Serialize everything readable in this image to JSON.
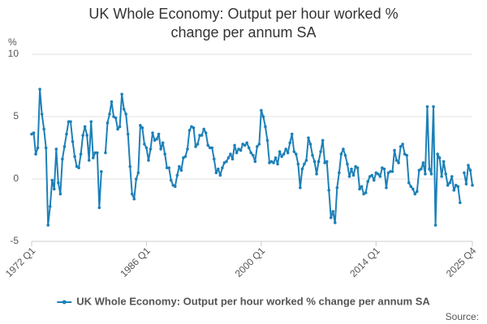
{
  "chart_data": {
    "type": "line",
    "title": "UK Whole Economy: Output per hour worked % change per annum SA",
    "y_label": "%",
    "source": "Source:",
    "categories": [
      "1972 Q1",
      null,
      null,
      null,
      null,
      null,
      null,
      null,
      null,
      null,
      null,
      null,
      null,
      null,
      null,
      null,
      null,
      null,
      null,
      null,
      null,
      null,
      null,
      null,
      null,
      null,
      null,
      null,
      null,
      null,
      null,
      null,
      null,
      null,
      null,
      null,
      null,
      null,
      null,
      null,
      null,
      null,
      null,
      null,
      null,
      null,
      null,
      null,
      null,
      null,
      null,
      null,
      null,
      null,
      null,
      null,
      "1986 Q1",
      null,
      null,
      null,
      null,
      null,
      null,
      null,
      null,
      null,
      null,
      null,
      null,
      null,
      null,
      null,
      null,
      null,
      null,
      null,
      null,
      null,
      null,
      null,
      null,
      null,
      null,
      null,
      null,
      null,
      null,
      null,
      null,
      null,
      null,
      null,
      null,
      null,
      null,
      null,
      null,
      null,
      null,
      null,
      null,
      null,
      null,
      null,
      null,
      null,
      null,
      null,
      null,
      null,
      null,
      null,
      "2000 Q1",
      null,
      null,
      null,
      null,
      null,
      null,
      null,
      null,
      null,
      null,
      null,
      null,
      null,
      null,
      null,
      null,
      null,
      null,
      null,
      null,
      null,
      null,
      null,
      null,
      null,
      null,
      null,
      null,
      null,
      null,
      null,
      null,
      null,
      null,
      null,
      null,
      null,
      null,
      null,
      null,
      null,
      null,
      null,
      null,
      null,
      null,
      null,
      null,
      null,
      null,
      null,
      null,
      null,
      null,
      null,
      "2014 Q1",
      null,
      null,
      null,
      null,
      null,
      null,
      null,
      null,
      null,
      null,
      null,
      null,
      null,
      null,
      null,
      null,
      null,
      null,
      null,
      null,
      null,
      null,
      null,
      null,
      null,
      null,
      null,
      null,
      null,
      null,
      null,
      null,
      null,
      null,
      null,
      null,
      null,
      null,
      null,
      null,
      null,
      null,
      null,
      null,
      null,
      null,
      "2025 Q4"
    ],
    "series": [
      {
        "name": "UK Whole Economy: Output per hour worked % change per annum SA",
        "color": "#1d80b8",
        "values": [
          3.6,
          3.7,
          2.0,
          2.5,
          7.2,
          5.2,
          4.0,
          2.5,
          -3.7,
          -2.2,
          -0.1,
          -0.8,
          2.4,
          -0.3,
          -1.2,
          1.6,
          2.6,
          3.6,
          4.6,
          4.6,
          3.0,
          1.8,
          1.0,
          0.9,
          2.0,
          3.5,
          4.2,
          3.5,
          1.5,
          4.6,
          1.7,
          2.1,
          2.1,
          -2.3,
          0.6,
          null,
          2.1,
          4.5,
          5.2,
          6.2,
          5.0,
          4.9,
          4.0,
          4.2,
          6.8,
          5.6,
          5.2,
          3.6,
          1.0,
          -1.2,
          -1.6,
          0.0,
          0.5,
          4.3,
          4.1,
          2.8,
          2.5,
          1.5,
          2.4,
          3.7,
          3.1,
          3.2,
          3.6,
          2.4,
          2.9,
          2.0,
          0.9,
          0.9,
          -0.1,
          -0.5,
          -0.6,
          0.3,
          1.0,
          0.7,
          1.7,
          1.8,
          2.4,
          3.9,
          4.2,
          4.1,
          2.6,
          2.8,
          3.5,
          3.5,
          4.0,
          3.7,
          2.7,
          2.5,
          2.5,
          1.6,
          0.5,
          0.8,
          0.3,
          0.9,
          1.3,
          1.4,
          1.7,
          2.0,
          1.6,
          2.7,
          2.1,
          2.4,
          2.3,
          2.8,
          2.7,
          2.9,
          2.5,
          2.1,
          1.9,
          1.4,
          2.6,
          2.8,
          5.5,
          5.0,
          4.2,
          3.1,
          1.3,
          1.4,
          1.3,
          1.7,
          1.2,
          2.2,
          1.8,
          2.0,
          2.4,
          2.1,
          2.9,
          3.6,
          2.2,
          2.0,
          1.2,
          -0.7,
          0.8,
          1.2,
          1.5,
          3.3,
          2.8,
          1.9,
          1.4,
          0.4,
          1.4,
          2.2,
          3.1,
          1.3,
          1.4,
          -0.9,
          -3.1,
          -2.6,
          -3.5,
          -0.7,
          0.5,
          2.0,
          2.4,
          1.9,
          1.2,
          0.2,
          0.8,
          0.3,
          1.0,
          0.9,
          -0.8,
          -0.6,
          -1.2,
          -1.1,
          -0.2,
          0.2,
          0.3,
          -0.1,
          0.5,
          0.4,
          0.2,
          0.9,
          0.8,
          -0.7,
          0.5,
          0.6,
          0.6,
          2.3,
          1.5,
          1.3,
          2.6,
          2.8,
          2.0,
          1.9,
          -0.3,
          -0.6,
          -0.8,
          -1.2,
          -1.0,
          0.7,
          0.8,
          1.3,
          0.4,
          5.8,
          0.8,
          0.4,
          5.8,
          -3.7,
          2.0,
          1.7,
          0.2,
          1.4,
          0.4,
          -0.5,
          -0.3,
          0.2,
          -0.9,
          -0.5,
          -0.6,
          -1.9,
          null,
          0.5,
          -0.4,
          1.1,
          0.7,
          -0.5
        ]
      }
    ],
    "ylim": [
      -5,
      10
    ],
    "yticks": [
      -5,
      0,
      5,
      10
    ],
    "grid": true
  }
}
